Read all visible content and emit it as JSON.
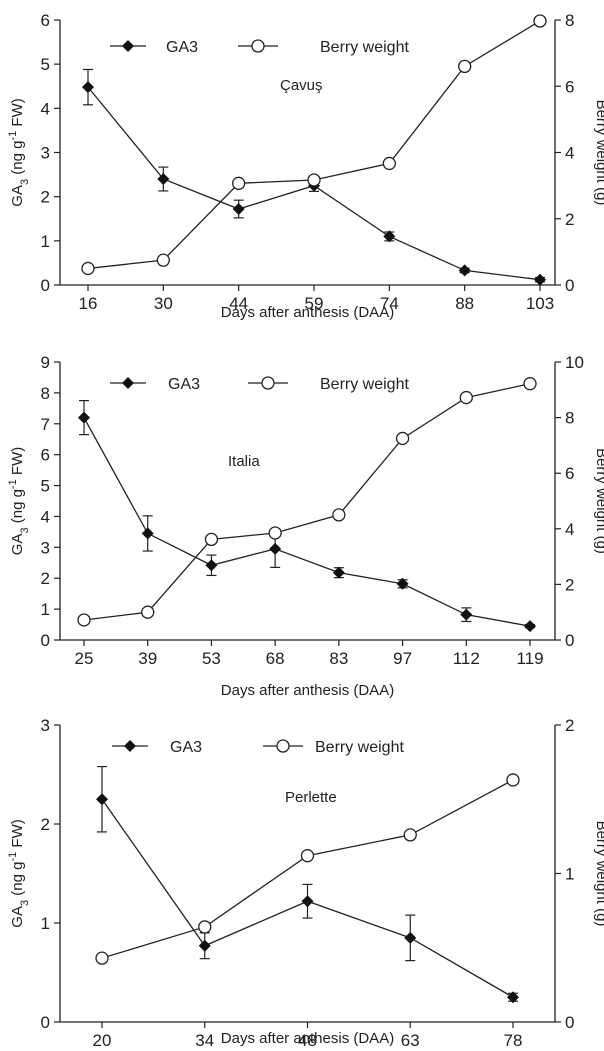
{
  "chart_data": [
    {
      "type": "line",
      "annotation": "Çavuş",
      "xlabel": "Days after anthesis (DAA)",
      "ylabel": {
        "pre": "GA",
        "sub": "3",
        "mid": " (ng g",
        "sup": "-1",
        "post": " FW)"
      },
      "y2label": "Berry weight (g)",
      "categories": [
        "16",
        "30",
        "44",
        "59",
        "74",
        "88",
        "103"
      ],
      "ylim": [
        0,
        6
      ],
      "yticks": [
        0,
        1,
        2,
        3,
        4,
        5,
        6
      ],
      "y2lim": [
        0,
        8
      ],
      "y2ticks": [
        0,
        2,
        4,
        6,
        8
      ],
      "series": [
        {
          "name": "GA3",
          "axis": "left",
          "marker": "diamond",
          "values": [
            4.48,
            2.4,
            1.72,
            2.25,
            1.1,
            0.33,
            0.12
          ],
          "errors": [
            0.4,
            0.27,
            0.2,
            0.13,
            0.1,
            0.05,
            0.05
          ]
        },
        {
          "name": "Berry weight",
          "axis": "right",
          "marker": "circle",
          "values": [
            0.5,
            0.75,
            3.07,
            3.17,
            3.67,
            6.6,
            7.97
          ]
        }
      ]
    },
    {
      "type": "line",
      "annotation": "Italia",
      "xlabel": "Days after anthesis (DAA)",
      "ylabel": {
        "pre": "GA",
        "sub": "3",
        "mid": " (ng g",
        "sup": "-1",
        "post": " FW)"
      },
      "y2label": "Berry weight (g)",
      "categories": [
        "25",
        "39",
        "53",
        "68",
        "83",
        "97",
        "112",
        "119"
      ],
      "ylim": [
        0,
        9
      ],
      "yticks": [
        0,
        1,
        2,
        3,
        4,
        5,
        6,
        7,
        8,
        9
      ],
      "y2lim": [
        0,
        10
      ],
      "y2ticks": [
        0,
        2,
        4,
        6,
        8,
        10
      ],
      "series": [
        {
          "name": "GA3",
          "axis": "left",
          "marker": "diamond",
          "values": [
            7.2,
            3.45,
            2.42,
            2.95,
            2.18,
            1.82,
            0.82,
            0.45
          ],
          "errors": [
            0.55,
            0.57,
            0.33,
            0.6,
            0.16,
            0.13,
            0.22,
            0.05
          ]
        },
        {
          "name": "Berry weight",
          "axis": "right",
          "marker": "circle",
          "values": [
            0.72,
            1.0,
            3.62,
            3.85,
            4.5,
            7.25,
            8.72,
            9.22
          ]
        }
      ]
    },
    {
      "type": "line",
      "annotation": "Perlette",
      "xlabel": "Days after anthesis (DAA)",
      "ylabel": {
        "pre": "GA",
        "sub": "3",
        "mid": " (ng g",
        "sup": "-1",
        "post": " FW)"
      },
      "y2label": "Berry weight (g)",
      "categories": [
        "20",
        "34",
        "48",
        "63",
        "78"
      ],
      "ylim": [
        0,
        3
      ],
      "yticks": [
        0,
        1,
        2,
        3
      ],
      "y2lim": [
        0,
        2
      ],
      "y2ticks": [
        0,
        1,
        2
      ],
      "series": [
        {
          "name": "GA3",
          "axis": "left",
          "marker": "diamond",
          "values": [
            2.25,
            0.77,
            1.22,
            0.85,
            0.25
          ],
          "errors": [
            0.33,
            0.13,
            0.17,
            0.23,
            0.04
          ]
        },
        {
          "name": "Berry weight",
          "axis": "right",
          "marker": "circle",
          "values": [
            0.43,
            0.64,
            1.12,
            1.26,
            1.63
          ]
        }
      ]
    }
  ]
}
